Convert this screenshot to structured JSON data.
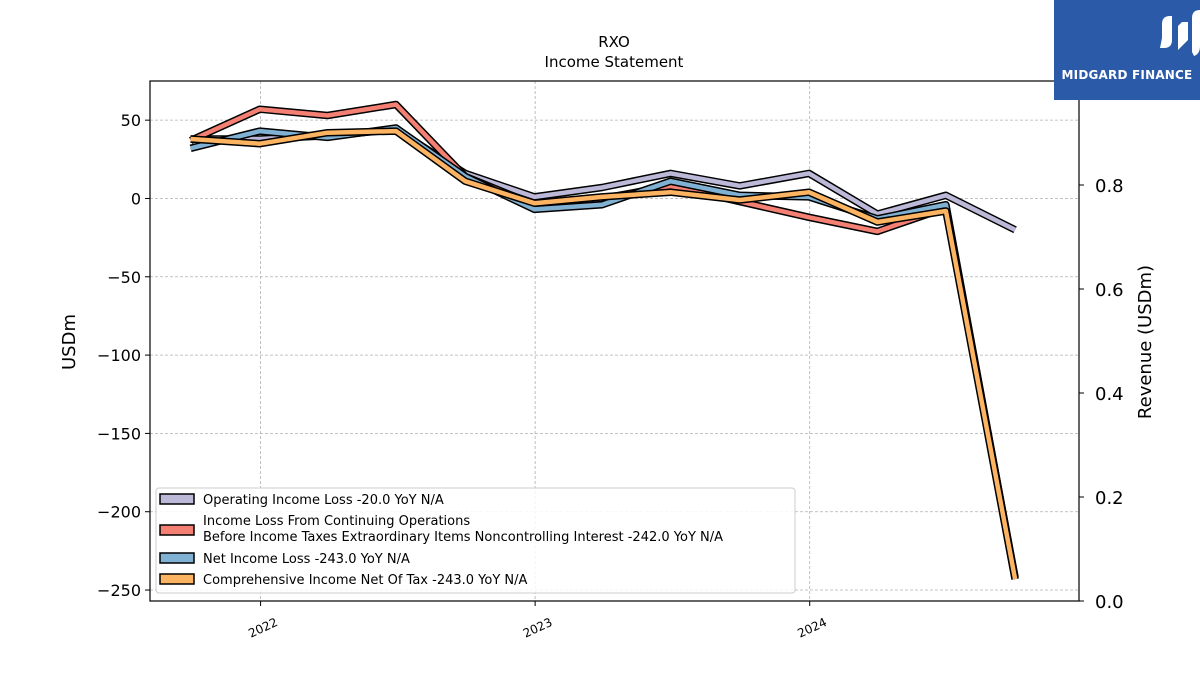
{
  "title": "RXO",
  "subtitle": "Income Statement",
  "logo": {
    "brand": "MIDGARD FINANCE",
    "color": "#2b5aa8"
  },
  "chart_data": {
    "type": "line",
    "ylabel": "USDm",
    "y2label": "Revenue (USDm)",
    "ylim": [
      -257,
      75
    ],
    "y2lim": [
      0.0,
      1.0
    ],
    "yticks": [
      50,
      0,
      -50,
      -100,
      -150,
      -200,
      -250
    ],
    "yticklabels": [
      "50",
      "0",
      "−50",
      "−100",
      "−150",
      "−200",
      "−250"
    ],
    "y2ticks": [
      0.0,
      0.2,
      0.4,
      0.6,
      0.8
    ],
    "y2ticklabels": [
      "0.0",
      "0.2",
      "0.4",
      "0.6",
      "0.8"
    ],
    "xticks": [
      "2022-01-01",
      "2023-01-01",
      "2024-01-01"
    ],
    "xticklabels": [
      "2022",
      "2023",
      "2024"
    ],
    "xlim": [
      "2021-08-07",
      "2024-12-24"
    ],
    "grid": true,
    "legend_position": "lower-left",
    "x": [
      "2021-09-30",
      "2021-12-31",
      "2022-03-31",
      "2022-06-30",
      "2022-09-30",
      "2022-12-31",
      "2023-03-31",
      "2023-06-30",
      "2023-09-30",
      "2023-12-31",
      "2024-03-31",
      "2024-06-30",
      "2024-09-30"
    ],
    "series": [
      {
        "name": "Operating Income Loss  -20.0 YoY N/A",
        "color": "#bcb9d8",
        "values": [
          38,
          38,
          40,
          44,
          16,
          1,
          7,
          16,
          8,
          16,
          -10,
          2,
          -20
        ]
      },
      {
        "name": "Income Loss From Continuing Operations\nBefore Income Taxes Extraordinary Items Noncontrolling Interest  -242.0 YoY N/A",
        "color": "#f47f73",
        "values": [
          37,
          57,
          53,
          60,
          14,
          -4,
          0,
          8,
          -2,
          -12,
          -21,
          -6,
          -242
        ]
      },
      {
        "name": "Net Income Loss  -243.0 YoY N/A",
        "color": "#80b1d3",
        "values": [
          32,
          43,
          39,
          45,
          14,
          -7,
          -4,
          11,
          2,
          1,
          -13,
          -4,
          -243
        ]
      },
      {
        "name": "Comprehensive Income Net Of Tax  -243.0 YoY N/A",
        "color": "#fdb462",
        "values": [
          38,
          35,
          42,
          43,
          11,
          -3,
          1,
          4,
          -1,
          4,
          -15,
          -8,
          -243
        ]
      }
    ]
  }
}
